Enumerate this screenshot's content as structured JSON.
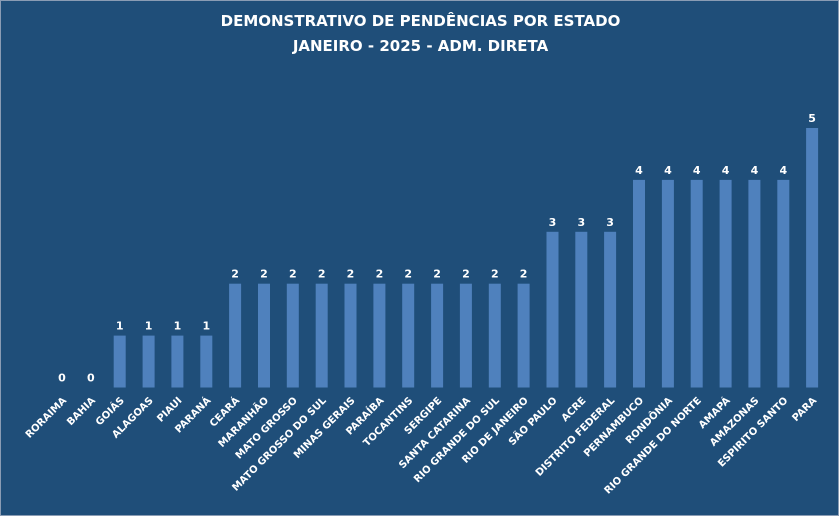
{
  "chart_data": {
    "type": "bar",
    "title": "DEMONSTRATIVO DE PENDÊNCIAS POR ESTADO",
    "subtitle": "JANEIRO - 2025 - ADM. DIRETA",
    "xlabel": "",
    "ylabel": "",
    "ylim": [
      0,
      5
    ],
    "grid": false,
    "legend": "none",
    "categories": [
      "RORAIMA",
      "BAHIA",
      "GOIÁS",
      "ALAGOAS",
      "PIAUI",
      "PARANÁ",
      "CEARÁ",
      "MARANHÃO",
      "MATO GROSSO",
      "MATO GROSSO DO SUL",
      "MINAS GERAIS",
      "PARAÍBA",
      "TOCANTINS",
      "SERGIPE",
      "SANTA CATARINA",
      "RIO GRANDE DO SUL",
      "RIO DE JANEIRO",
      "SÃO PAULO",
      "ACRE",
      "DISTRITO FEDERAL",
      "PERNAMBUCO",
      "RONDÔNIA",
      "RIO GRANDE DO NORTE",
      "AMAPÁ",
      "AMAZONAS",
      "ESPIRITO SANTO",
      "PARA"
    ],
    "values": [
      0,
      0,
      1,
      1,
      1,
      1,
      2,
      2,
      2,
      2,
      2,
      2,
      2,
      2,
      2,
      2,
      2,
      3,
      3,
      3,
      4,
      4,
      4,
      4,
      4,
      4,
      5
    ]
  },
  "colors": {
    "background": "#1f4e79",
    "bar": "#4f81bd",
    "text": "#ffffff"
  }
}
